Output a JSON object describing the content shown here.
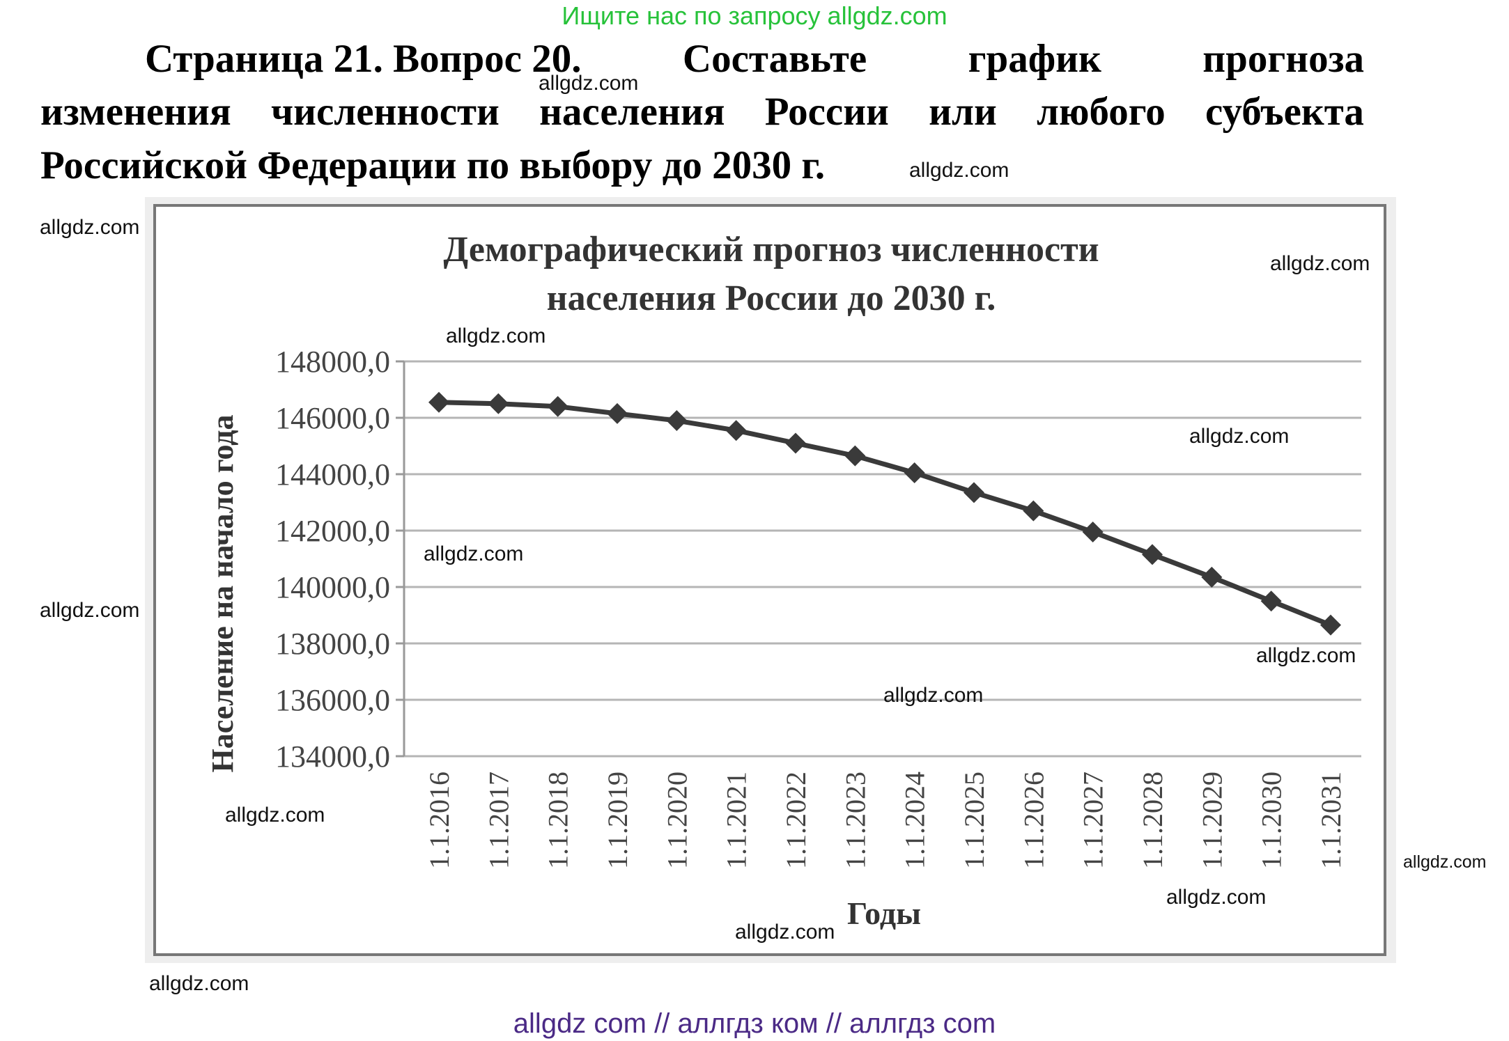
{
  "banner": "Ищите нас по запросу allgdz.com",
  "heading": {
    "line1": [
      "Страница 21. Вопрос 20.",
      "Составьте",
      "график",
      "прогноза"
    ],
    "line2": [
      "изменения",
      "численности",
      "населения",
      "России",
      "или",
      "любого",
      "субъекта"
    ],
    "line3": "Российской Федерации по выбору до 2030 г."
  },
  "watermark": "allgdz.com",
  "footer": "allgdz com  //  аллгдз ком  //  аллгдз com",
  "chart_data": {
    "type": "line",
    "title_line1": "Демографический прогноз численности",
    "title_line2": "населения России до 2030 г.",
    "xlabel": "Годы",
    "ylabel": "Население на начало года",
    "ylim": [
      134000,
      148000
    ],
    "y_ticks": [
      "134000,0",
      "136000,0",
      "138000,0",
      "140000,0",
      "142000,0",
      "144000,0",
      "146000,0",
      "148000,0"
    ],
    "categories": [
      "1.1.2016",
      "1.1.2017",
      "1.1.2018",
      "1.1.2019",
      "1.1.2020",
      "1.1.2021",
      "1.1.2022",
      "1.1.2023",
      "1.1.2024",
      "1.1.2025",
      "1.1.2026",
      "1.1.2027",
      "1.1.2028",
      "1.1.2029",
      "1.1.2030",
      "1.1.2031"
    ],
    "values": [
      146550,
      146500,
      146400,
      146150,
      145900,
      145550,
      145100,
      144650,
      144050,
      143350,
      142700,
      141950,
      141150,
      140350,
      139500,
      138650
    ],
    "grid": true,
    "marker": "diamond",
    "line_color": "#3a3a3a"
  }
}
